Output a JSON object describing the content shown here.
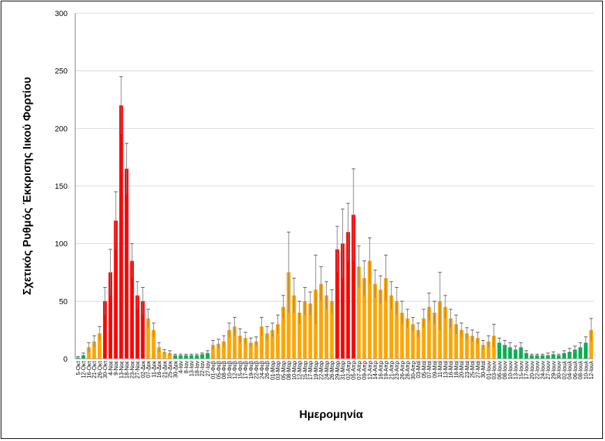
{
  "chart_data": {
    "type": "bar",
    "title": "",
    "xlabel": "Ημερομηνία",
    "ylabel": "Σχετικός Ρυθμός Έκκρισης Ιικού Φορτίου",
    "ylim": [
      0,
      300
    ],
    "yticks": [
      0,
      50,
      100,
      150,
      200,
      250,
      300
    ],
    "grid": true,
    "legend": "none",
    "level_colors": {
      "g": "#00b050",
      "o": "#ffa500",
      "r": "#ff0000",
      "error": "#808080"
    },
    "categories": [
      "5-Οκτ",
      "12-Οκτ",
      "16-Οκτ",
      "21-Οκτ",
      "26-Οκτ",
      "30-Οκτ",
      "4-Νοε",
      "9-Νοε",
      "13-Νοε",
      "18-Νοε",
      "23-Νοε",
      "27-Νοε",
      "02-Δεκ",
      "07-Δεκ",
      "11-Δεκ",
      "16-Δεκ",
      "21-Δεκ",
      "25-Δεκ",
      "30-Δεκ",
      "4-Ιαν",
      "8-Ιαν",
      "13-Ιαν",
      "18-Ιαν",
      "22-Ιαν",
      "27-Ιαν",
      "01-Φεβ",
      "05-Φεβ",
      "08-Φεβ",
      "10-Φεβ",
      "12-Φεβ",
      "15-Φεβ",
      "17-Φεβ",
      "19-Φεβ",
      "22-Φεβ",
      "24-Φεβ",
      "26-Φεβ",
      "01-Μαρ",
      "03-Μαρ",
      "05-Μαρ",
      "08-Μαρ",
      "10-Μαρ",
      "12-Μαρ",
      "15-Μαρ",
      "17-Μαρ",
      "19-Μαρ",
      "22-Μαρ",
      "24-Μαρ",
      "26-Μαρ",
      "29-Μαρ",
      "31-Μαρ",
      "02-Απρ",
      "05-Απρ",
      "07-Απρ",
      "09-Απρ",
      "12-Απρ",
      "14-Απρ",
      "16-Απρ",
      "19-Απρ",
      "21-Απρ",
      "23-Απρ",
      "26-Απρ",
      "28-Απρ",
      "30-Απρ",
      "03-Μαϊ",
      "05-Μαϊ",
      "07-Μαϊ",
      "09-Μαϊ",
      "11-Μαϊ",
      "13-Μαϊ",
      "16-Μαϊ",
      "18-Μαϊ",
      "20-Μαϊ",
      "23-Μαϊ",
      "25-Μαϊ",
      "27-Μαϊ",
      "30-Μαϊ",
      "01-Ιουν",
      "03-Ιουν",
      "06-Ιουν",
      "08-Ιουν",
      "10-Ιουν",
      "13-Ιουν",
      "15-Ιουν",
      "17-Ιουν",
      "20-Ιουν",
      "22-Ιουν",
      "24-Ιουν",
      "27-Ιουν",
      "29-Ιουν",
      "30-Ιουν",
      "02-Ιουλ",
      "04-Ιουλ",
      "06-Ιουλ",
      "08-Ιουλ",
      "10-Ιουλ",
      "12-Ιουλ"
    ],
    "values": [
      1,
      3,
      10,
      15,
      22,
      50,
      75,
      120,
      220,
      165,
      85,
      55,
      50,
      35,
      25,
      10,
      6,
      5,
      3,
      3,
      3,
      3,
      3,
      4,
      5,
      12,
      13,
      15,
      25,
      28,
      20,
      18,
      14,
      15,
      28,
      22,
      25,
      30,
      45,
      75,
      55,
      40,
      50,
      48,
      60,
      65,
      55,
      50,
      95,
      100,
      110,
      125,
      80,
      70,
      85,
      65,
      60,
      70,
      55,
      50,
      40,
      35,
      30,
      25,
      35,
      45,
      40,
      50,
      45,
      35,
      30,
      25,
      22,
      20,
      18,
      12,
      15,
      20,
      14,
      12,
      10,
      8,
      10,
      5,
      3,
      3,
      3,
      3,
      4,
      3,
      5,
      6,
      8,
      10,
      14,
      25
    ],
    "errors": [
      1,
      2,
      4,
      5,
      6,
      12,
      20,
      25,
      25,
      22,
      15,
      12,
      12,
      8,
      6,
      4,
      2,
      2,
      1,
      1,
      1,
      1,
      1,
      1,
      2,
      4,
      4,
      5,
      6,
      8,
      6,
      5,
      4,
      4,
      8,
      6,
      6,
      8,
      10,
      35,
      15,
      10,
      12,
      10,
      30,
      15,
      12,
      10,
      20,
      30,
      25,
      40,
      18,
      15,
      20,
      12,
      12,
      20,
      12,
      12,
      10,
      8,
      6,
      6,
      8,
      12,
      10,
      25,
      10,
      8,
      8,
      6,
      5,
      5,
      5,
      4,
      5,
      10,
      4,
      4,
      4,
      3,
      4,
      2,
      1,
      1,
      1,
      2,
      2,
      1,
      2,
      3,
      3,
      4,
      5,
      10
    ],
    "levels": [
      "g",
      "g",
      "o",
      "o",
      "o",
      "r",
      "r",
      "r",
      "r",
      "r",
      "r",
      "r",
      "r",
      "o",
      "o",
      "o",
      "o",
      "o",
      "g",
      "g",
      "g",
      "g",
      "g",
      "g",
      "g",
      "o",
      "o",
      "o",
      "o",
      "o",
      "o",
      "o",
      "o",
      "o",
      "o",
      "o",
      "o",
      "o",
      "o",
      "o",
      "o",
      "o",
      "o",
      "o",
      "o",
      "o",
      "o",
      "o",
      "r",
      "r",
      "r",
      "r",
      "o",
      "o",
      "o",
      "o",
      "o",
      "o",
      "o",
      "o",
      "o",
      "o",
      "o",
      "o",
      "o",
      "o",
      "o",
      "o",
      "o",
      "o",
      "o",
      "o",
      "o",
      "o",
      "o",
      "o",
      "o",
      "o",
      "g",
      "g",
      "g",
      "g",
      "g",
      "g",
      "g",
      "g",
      "g",
      "g",
      "g",
      "g",
      "g",
      "g",
      "g",
      "g",
      "g",
      "o"
    ]
  }
}
